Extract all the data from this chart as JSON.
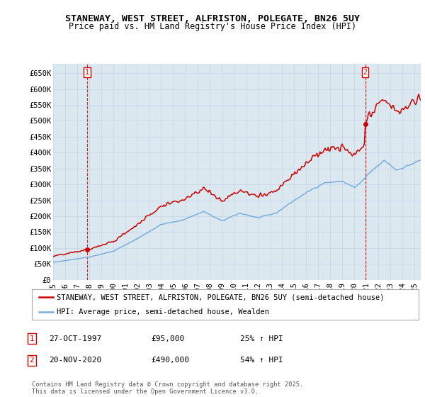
{
  "title": "STANEWAY, WEST STREET, ALFRISTON, POLEGATE, BN26 5UY",
  "subtitle": "Price paid vs. HM Land Registry's House Price Index (HPI)",
  "ylim": [
    0,
    680000
  ],
  "yticks": [
    0,
    50000,
    100000,
    150000,
    200000,
    250000,
    300000,
    350000,
    400000,
    450000,
    500000,
    550000,
    600000,
    650000
  ],
  "ytick_labels": [
    "£0",
    "£50K",
    "£100K",
    "£150K",
    "£200K",
    "£250K",
    "£300K",
    "£350K",
    "£400K",
    "£450K",
    "£500K",
    "£550K",
    "£600K",
    "£650K"
  ],
  "xlim_start": 1995.0,
  "xlim_end": 2025.5,
  "sale1_x": 1997.82,
  "sale1_y": 95000,
  "sale1_label": "1",
  "sale2_x": 2020.89,
  "sale2_y": 490000,
  "sale2_label": "2",
  "marker_color": "#cc0000",
  "hpi_color": "#7aaddc",
  "price_color": "#cc0000",
  "grid_color": "#c8d8e8",
  "chart_bg": "#dce8f0",
  "bg_color": "#ffffff",
  "legend_label_price": "STANEWAY, WEST STREET, ALFRISTON, POLEGATE, BN26 5UY (semi-detached house)",
  "legend_label_hpi": "HPI: Average price, semi-detached house, Wealden",
  "annotation1_date": "27-OCT-1997",
  "annotation1_price": "£95,000",
  "annotation1_hpi": "25% ↑ HPI",
  "annotation2_date": "20-NOV-2020",
  "annotation2_price": "£490,000",
  "annotation2_hpi": "54% ↑ HPI",
  "footnote": "Contains HM Land Registry data © Crown copyright and database right 2025.\nThis data is licensed under the Open Government Licence v3.0.",
  "title_fontsize": 9.5,
  "subtitle_fontsize": 8.5,
  "tick_fontsize": 7.5,
  "legend_fontsize": 7.5
}
